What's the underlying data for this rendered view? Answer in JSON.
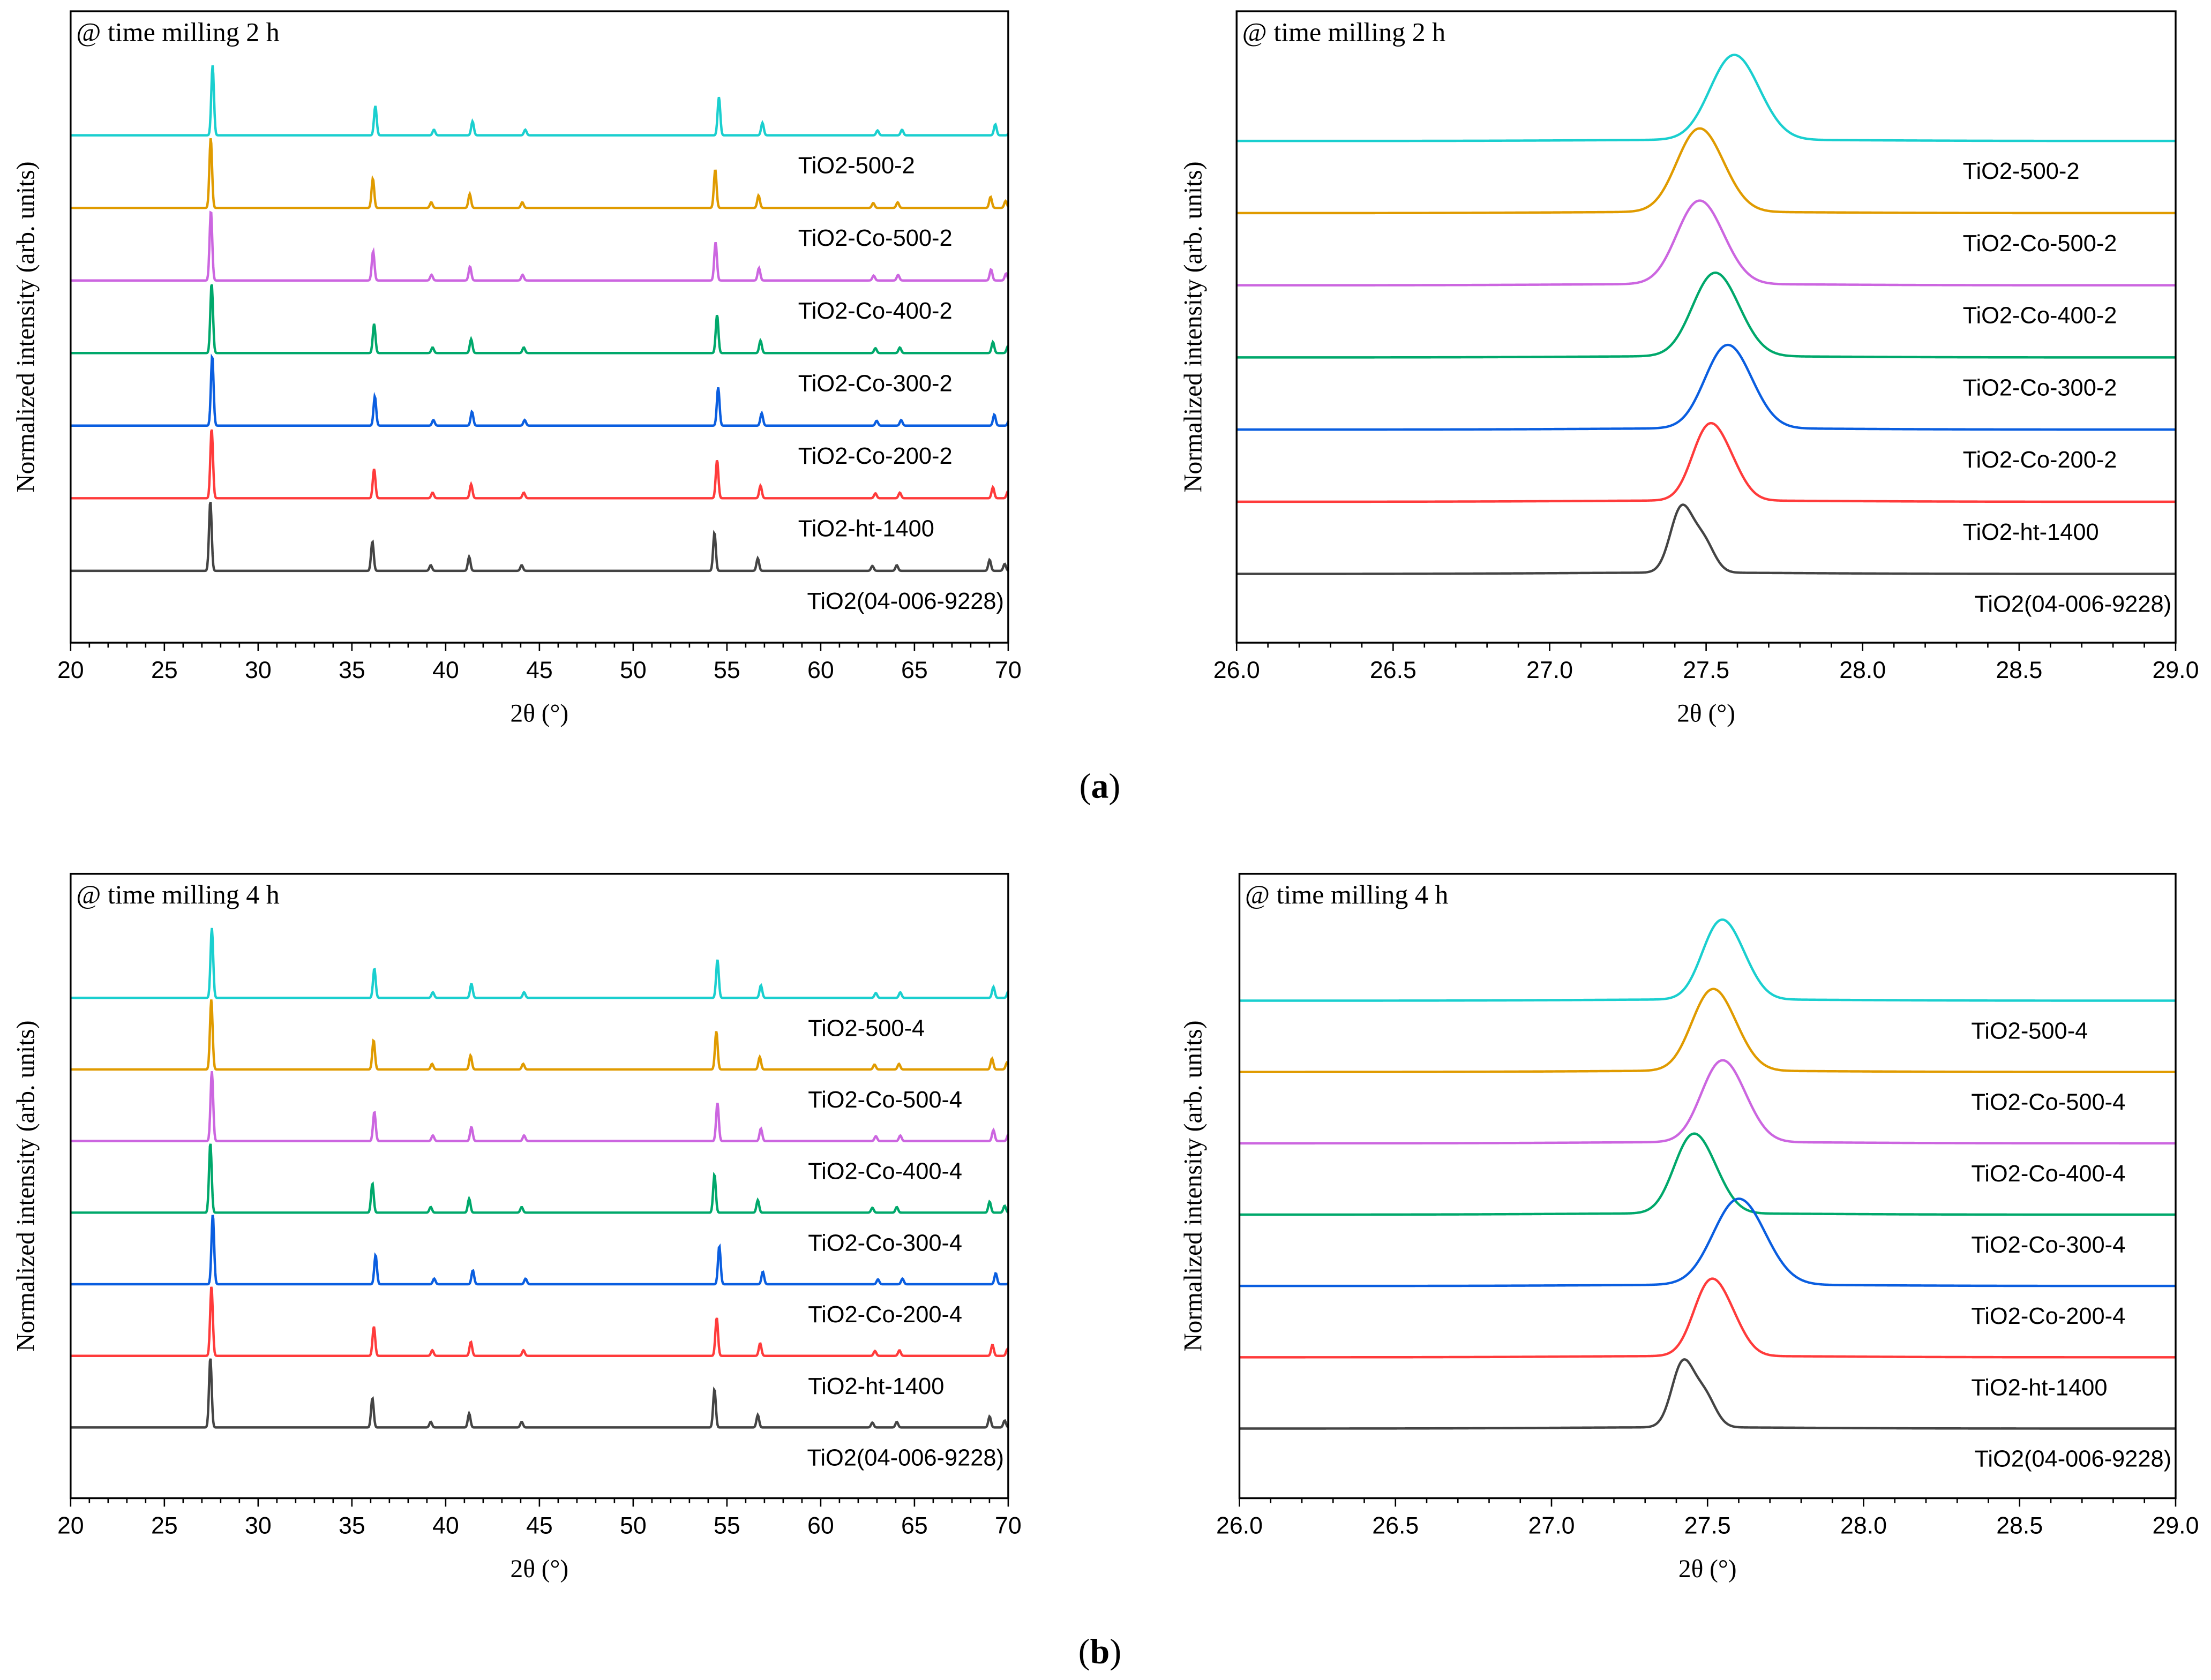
{
  "captions": {
    "a_open": "(",
    "a": "a",
    "a_close": ")",
    "b_open": "(",
    "b": "b",
    "b_close": ")"
  },
  "chart_data": [
    {
      "type": "line",
      "panel": "a-left",
      "annotation": "@ time milling 2 h",
      "xlabel": "2θ (°)",
      "ylabel": "Normalized intensity (arb. units)",
      "xlim": [
        20,
        70
      ],
      "xticks": [
        "20",
        "25",
        "30",
        "35",
        "40",
        "45",
        "50",
        "55",
        "60",
        "65",
        "70"
      ],
      "xtick_step": 5,
      "minor_step": 1,
      "reflections": [
        [
          27.45,
          1.0
        ],
        [
          36.09,
          0.42
        ],
        [
          39.2,
          0.08
        ],
        [
          41.25,
          0.2
        ],
        [
          44.05,
          0.08
        ],
        [
          54.33,
          0.55
        ],
        [
          56.64,
          0.18
        ],
        [
          62.75,
          0.07
        ],
        [
          64.05,
          0.08
        ],
        [
          69.0,
          0.16
        ],
        [
          69.8,
          0.1
        ]
      ],
      "series": [
        {
          "name": "TiO2-500-2",
          "color": "#1ACFCF",
          "shift": 0.12
        },
        {
          "name": "TiO2-Co-500-2",
          "color": "#E09B00",
          "shift": 0.02
        },
        {
          "name": "TiO2-Co-400-2",
          "color": "#CC66E0",
          "shift": 0.03
        },
        {
          "name": "TiO2-Co-300-2",
          "color": "#00A86B",
          "shift": 0.07
        },
        {
          "name": "TiO2-Co-200-2",
          "color": "#0A5EE0",
          "shift": 0.1
        },
        {
          "name": "TiO2-ht-1400",
          "color": "#FF3B3B",
          "shift": 0.07
        },
        {
          "name": "TiO2(04-006-9228)",
          "color": "#444444",
          "shift": 0.0
        }
      ]
    },
    {
      "type": "line",
      "panel": "a-right",
      "annotation": "@ time milling 2 h",
      "xlabel": "2θ (°)",
      "ylabel": "Normalized intensity (arb. units)",
      "xlim": [
        26.0,
        29.0
      ],
      "xticks": [
        "26.0",
        "26.5",
        "27.0",
        "27.5",
        "28.0",
        "28.5",
        "29.0"
      ],
      "xtick_step": 0.5,
      "minor_step": 0.1,
      "series": [
        {
          "name": "TiO2-500-2",
          "color": "#1ACFCF",
          "peak": 27.57,
          "width": 0.07
        },
        {
          "name": "TiO2-Co-500-2",
          "color": "#E09B00",
          "peak": 27.46,
          "width": 0.065
        },
        {
          "name": "TiO2-Co-400-2",
          "color": "#CC66E0",
          "peak": 27.46,
          "width": 0.065
        },
        {
          "name": "TiO2-Co-300-2",
          "color": "#00A86B",
          "peak": 27.51,
          "width": 0.065
        },
        {
          "name": "TiO2-Co-200-2",
          "color": "#0A5EE0",
          "peak": 27.55,
          "width": 0.065
        },
        {
          "name": "TiO2-ht-1400",
          "color": "#FF3B3B",
          "peak": 27.5,
          "width": 0.05
        },
        {
          "name": "TiO2(04-006-9228)",
          "color": "#444444",
          "peak": 27.42,
          "width": 0.035
        }
      ]
    },
    {
      "type": "line",
      "panel": "b-left",
      "annotation": "@ time milling 4 h",
      "xlabel": "2θ (°)",
      "ylabel": "Normalized intensity (arb. units)",
      "xlim": [
        20,
        70
      ],
      "xticks": [
        "20",
        "25",
        "30",
        "35",
        "40",
        "45",
        "50",
        "55",
        "60",
        "65",
        "70"
      ],
      "xtick_step": 5,
      "minor_step": 1,
      "reflections": [
        [
          27.45,
          1.0
        ],
        [
          36.09,
          0.42
        ],
        [
          39.2,
          0.08
        ],
        [
          41.25,
          0.2
        ],
        [
          44.05,
          0.08
        ],
        [
          54.33,
          0.55
        ],
        [
          56.64,
          0.18
        ],
        [
          62.75,
          0.07
        ],
        [
          64.05,
          0.08
        ],
        [
          69.0,
          0.16
        ],
        [
          69.8,
          0.1
        ]
      ],
      "series": [
        {
          "name": "TiO2-500-4",
          "color": "#1ACFCF",
          "shift": 0.08
        },
        {
          "name": "TiO2-Co-500-4",
          "color": "#E09B00",
          "shift": 0.05
        },
        {
          "name": "TiO2-Co-400-4",
          "color": "#CC66E0",
          "shift": 0.08
        },
        {
          "name": "TiO2-Co-300-4",
          "color": "#00A86B",
          "shift": 0.0
        },
        {
          "name": "TiO2-Co-200-4",
          "color": "#0A5EE0",
          "shift": 0.13
        },
        {
          "name": "TiO2-ht-1400",
          "color": "#FF3B3B",
          "shift": 0.06
        },
        {
          "name": "TiO2(04-006-9228)",
          "color": "#444444",
          "shift": 0.0
        }
      ]
    },
    {
      "type": "line",
      "panel": "b-right",
      "annotation": "@ time milling 4 h",
      "xlabel": "2θ (°)",
      "ylabel": "Normalized intensity (arb. units)",
      "xlim": [
        26.0,
        29.0
      ],
      "xticks": [
        "26.0",
        "26.5",
        "27.0",
        "27.5",
        "28.0",
        "28.5",
        "29.0"
      ],
      "xtick_step": 0.5,
      "minor_step": 0.1,
      "series": [
        {
          "name": "TiO2-500-4",
          "color": "#1ACFCF",
          "peak": 27.53,
          "width": 0.055
        },
        {
          "name": "TiO2-Co-500-4",
          "color": "#E09B00",
          "peak": 27.5,
          "width": 0.06
        },
        {
          "name": "TiO2-Co-400-4",
          "color": "#CC66E0",
          "peak": 27.53,
          "width": 0.06
        },
        {
          "name": "TiO2-Co-300-4",
          "color": "#00A86B",
          "peak": 27.44,
          "width": 0.055
        },
        {
          "name": "TiO2-Co-200-4",
          "color": "#0A5EE0",
          "peak": 27.58,
          "width": 0.075
        },
        {
          "name": "TiO2-ht-1400",
          "color": "#FF3B3B",
          "peak": 27.5,
          "width": 0.05
        },
        {
          "name": "TiO2(04-006-9228)",
          "color": "#444444",
          "peak": 27.42,
          "width": 0.035
        }
      ]
    }
  ]
}
